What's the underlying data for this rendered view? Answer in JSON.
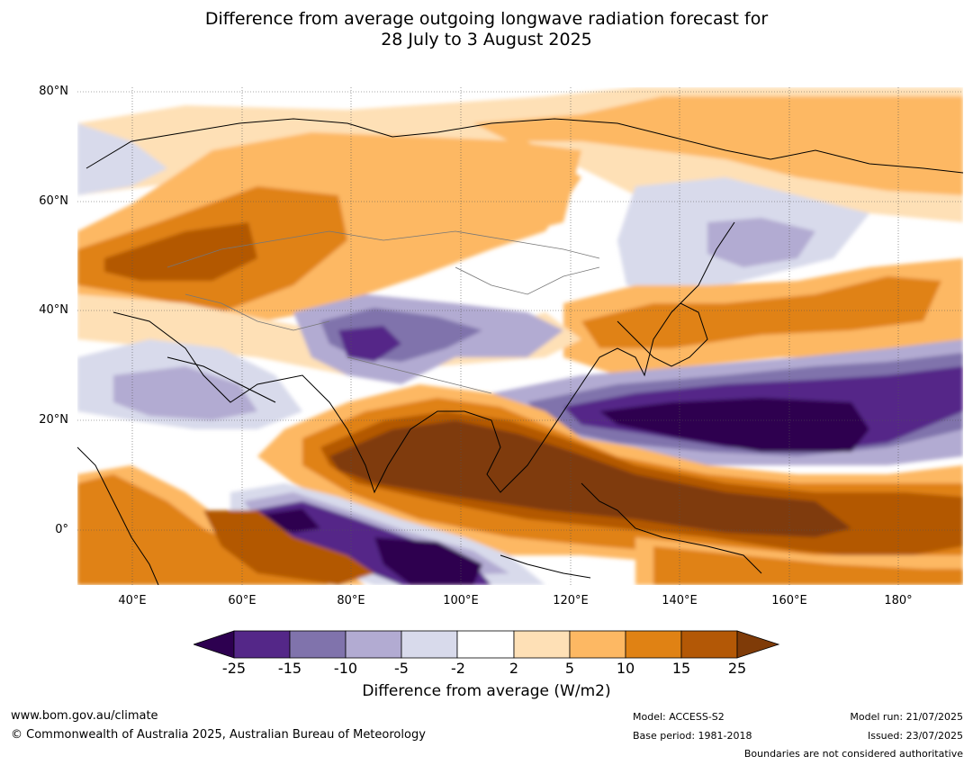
{
  "title": {
    "line1": "Difference from average outgoing longwave radiation forecast for",
    "line2": "28 July to 3 August 2025"
  },
  "map": {
    "lat_labels": [
      "80°N",
      "60°N",
      "40°N",
      "20°N",
      "0°"
    ],
    "lon_labels": [
      "40°E",
      "60°E",
      "80°E",
      "100°E",
      "120°E",
      "140°E",
      "160°E",
      "180°"
    ]
  },
  "colorbar": {
    "ticks": [
      "-25",
      "-15",
      "-10",
      "-5",
      "-2",
      "2",
      "5",
      "10",
      "15",
      "25"
    ],
    "colors": [
      "#2d0050",
      "#542788",
      "#8073ac",
      "#b2abd2",
      "#d8daeb",
      "#ffffff",
      "#fee0b6",
      "#fdb863",
      "#e08214",
      "#b35806",
      "#7f3b08"
    ],
    "label": "Difference from average (W/m2)"
  },
  "footer": {
    "website": "www.bom.gov.au/climate",
    "copyright": "© Commonwealth of Australia 2025, Australian Bureau of Meteorology",
    "model": "Model: ACCESS-S2",
    "base_period": "Base period: 1981-2018",
    "model_run": "Model run: 21/07/2025",
    "issued": "Issued: 23/07/2025",
    "disclaimer": "Boundaries are not considered authoritative"
  }
}
